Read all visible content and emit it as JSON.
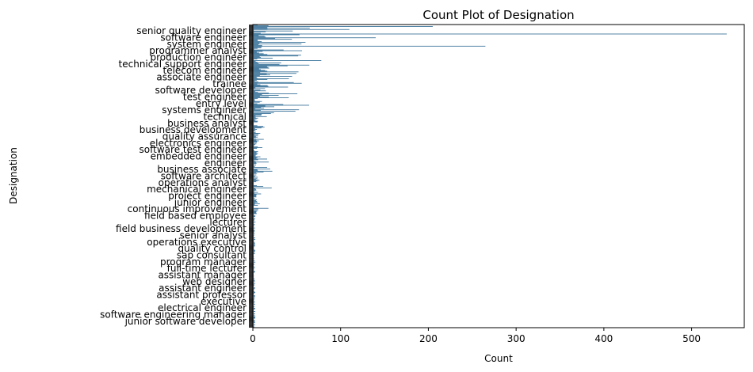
{
  "chart_data": {
    "type": "bar",
    "orientation": "horizontal",
    "title": "Count Plot of Designation",
    "xlabel": "Count",
    "ylabel": "Designation",
    "xlim": [
      0,
      560
    ],
    "xticks": [
      0,
      100,
      200,
      300,
      400,
      500
    ],
    "grid": false,
    "legend": "none",
    "bar_color": "#1f5f8b",
    "readable_labels": [
      "senior quality engineer",
      "software engineer",
      "system engineer",
      "programmer analyst",
      "production engineer",
      "technical support engineer",
      "telecom engineer",
      "associate engineer",
      "trainee",
      "software developer",
      "test engineer",
      "entry level",
      "systems engineer",
      "technical",
      "business analyst",
      "business development",
      "quality assurance",
      "electronics engineer",
      "software test engineer",
      "embedded engineer",
      "engineer",
      "business associate",
      "software architect",
      "operations analyst",
      "mechanical engineer",
      "project engineer",
      "junior engineer",
      "continuous improvement",
      "field based employee",
      "lecturer",
      "field business development",
      "senior analyst",
      "operations executive",
      "quality control",
      "sap consultant",
      "program manager",
      "full-time lecturer",
      "assistant manager",
      "web designer",
      "assistant engineer",
      "assistant professor",
      "executive",
      "electrical engineer",
      "software engineering manager",
      "junior software developer"
    ],
    "peaks": [
      {
        "position": 2,
        "value": 205
      },
      {
        "position": 6,
        "value": 110
      },
      {
        "position": 12,
        "value": 540
      },
      {
        "position": 17,
        "value": 140
      },
      {
        "position": 23,
        "value": 60
      },
      {
        "position": 28,
        "value": 265
      },
      {
        "position": 33,
        "value": 35
      },
      {
        "position": 40,
        "value": 55
      },
      {
        "position": 47,
        "value": 78
      },
      {
        "position": 62,
        "value": 52
      }
    ]
  }
}
